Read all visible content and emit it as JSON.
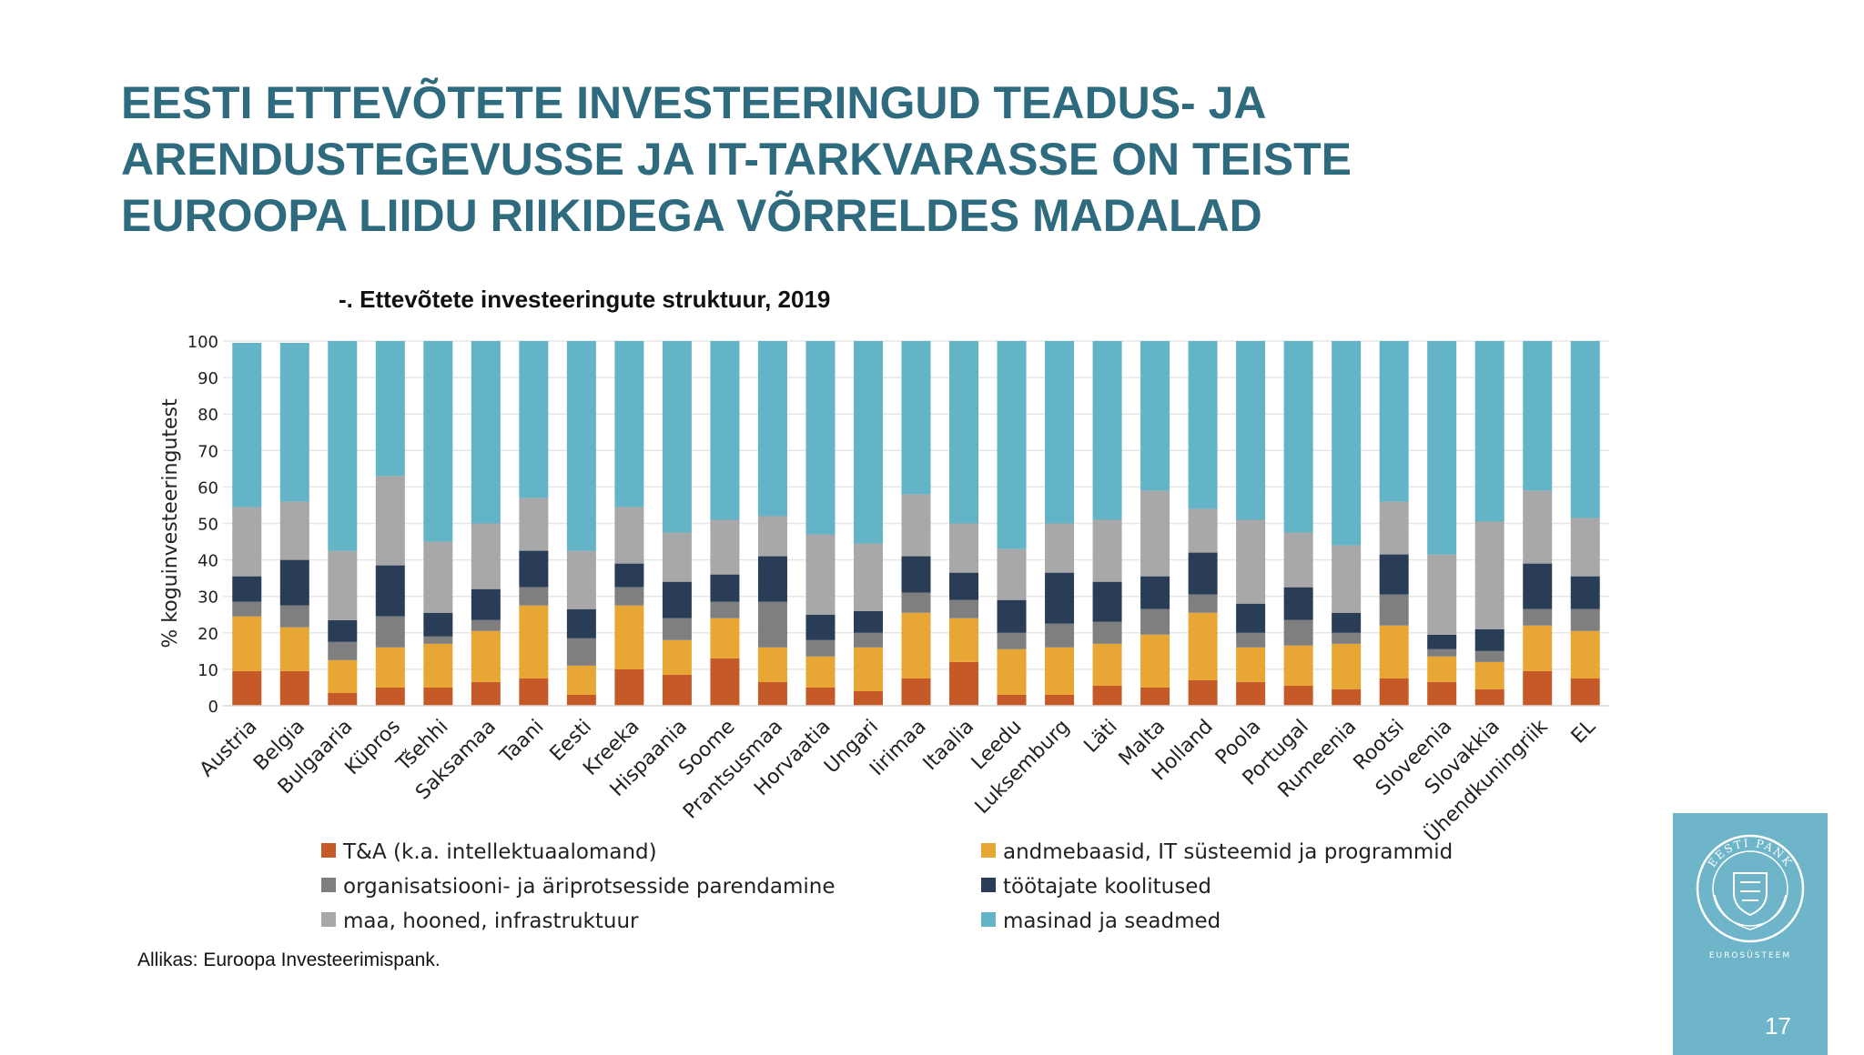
{
  "slide": {
    "title_lines": [
      "EESTI ETTEVÕTETE INVESTEERINGUD TEADUS- JA",
      "ARENDUSTEGEVUSSE JA IT-TARKVARASSE ON TEISTE",
      "EUROOPA LIIDU RIIKIDEGA VÕRRELDES MADALAD"
    ],
    "source": "Allikas: Euroopa Investeerimispank.",
    "page_number": "17",
    "logo_text": "EESTI PANK",
    "logo_subtext": "EUROSÜSTEEM"
  },
  "chart_data": {
    "type": "bar",
    "stacked": true,
    "title": "-. Ettevõtete investeeringute struktuur, 2019",
    "ylabel": "% koguinvesteeringutest",
    "xlabel": "",
    "ylim": [
      0,
      100
    ],
    "yticks": [
      0,
      10,
      20,
      30,
      40,
      50,
      60,
      70,
      80,
      90,
      100
    ],
    "grid": true,
    "legend_position": "bottom",
    "categories": [
      "Austria",
      "Belgia",
      "Bulgaaria",
      "Küpros",
      "Tšehhi",
      "Saksamaa",
      "Taani",
      "Eesti",
      "Kreeka",
      "Hispaania",
      "Soome",
      "Prantsusmaa",
      "Horvaatia",
      "Ungari",
      "Iirimaa",
      "Itaalia",
      "Leedu",
      "Luksemburg",
      "Läti",
      "Malta",
      "Holland",
      "Poola",
      "Portugal",
      "Rumeenia",
      "Rootsi",
      "Sloveenia",
      "Slovakkia",
      "Ühendkuningriik",
      "EL"
    ],
    "series": [
      {
        "name": "T&A (k.a. intellektuaalomand)",
        "color": "#c55a28",
        "values": [
          9.5,
          9.5,
          3.5,
          5,
          5,
          6.5,
          7.5,
          3,
          10,
          8.5,
          13,
          6.5,
          5,
          4,
          7.5,
          12,
          3,
          3,
          5.5,
          5,
          7,
          6.5,
          5.5,
          4.5,
          7.5,
          6.5,
          4.5,
          9.5,
          7.5
        ]
      },
      {
        "name": "andmebaasid, IT süsteemid ja programmid",
        "color": "#e8a634",
        "values": [
          15,
          12,
          9,
          11,
          12,
          14,
          20,
          8,
          17.5,
          9.5,
          11,
          9.5,
          8.5,
          12,
          18,
          12,
          12.5,
          13,
          11.5,
          14.5,
          18.5,
          9.5,
          11,
          12.5,
          14.5,
          7,
          7.5,
          12.5,
          13
        ]
      },
      {
        "name": "organisatsiooni- ja äriprotsesside parendamine",
        "color": "#7f7f80",
        "values": [
          4,
          6,
          5,
          8.5,
          2,
          3,
          5,
          7.5,
          5,
          6,
          4.5,
          12.5,
          4.5,
          4,
          5.5,
          5,
          4.5,
          6.5,
          6,
          7,
          5,
          4,
          7,
          3,
          8.5,
          2,
          3,
          4.5,
          6
        ]
      },
      {
        "name": "töötajate koolitused",
        "color": "#2a3d56",
        "values": [
          7,
          12.5,
          6,
          14,
          6.5,
          8.5,
          10,
          8,
          6.5,
          10,
          7.5,
          12.5,
          7,
          6,
          10,
          7.5,
          9,
          14,
          11,
          9,
          11.5,
          8,
          9,
          5.5,
          11,
          4,
          6,
          12.5,
          9
        ]
      },
      {
        "name": "maa, hooned, infrastruktuur",
        "color": "#a8a8a8",
        "values": [
          19,
          16,
          19,
          24.5,
          19.5,
          18,
          14.5,
          16,
          15.5,
          13.5,
          15,
          11,
          22,
          18.5,
          17,
          13.5,
          14,
          13.5,
          17,
          23.5,
          12,
          23,
          15,
          18.5,
          14.5,
          22,
          29.5,
          20,
          16
        ]
      },
      {
        "name": "masinad ja seadmed",
        "color": "#64b4c8",
        "values": [
          45,
          43.5,
          57.5,
          37,
          55,
          50,
          43,
          57.5,
          45.5,
          52.5,
          49,
          48,
          53,
          55.5,
          42,
          50,
          57,
          50,
          49,
          41,
          46,
          49,
          52.5,
          56,
          44,
          58.5,
          49.5,
          41,
          48.5
        ]
      }
    ]
  }
}
